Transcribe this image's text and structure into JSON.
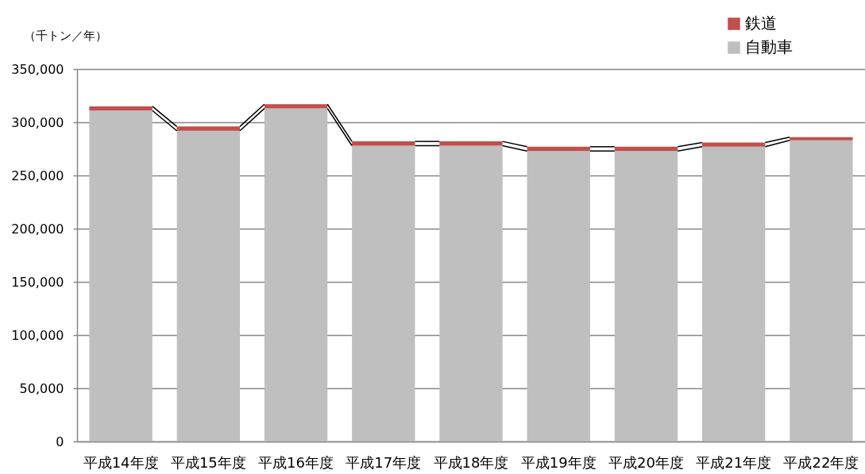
{
  "chart_data": {
    "type": "bar",
    "stacked": true,
    "ylabel": "（千トン／年）",
    "categories": [
      "平成14年度",
      "平成15年度",
      "平成16年度",
      "平成17年度",
      "平成18年度",
      "平成19年度",
      "平成20年度",
      "平成21年度",
      "平成22年度"
    ],
    "series": [
      {
        "name": "自動車",
        "color": "#bfbfbf",
        "values": [
          311000,
          292000,
          313000,
          278000,
          278000,
          273000,
          273000,
          277000,
          283000
        ]
      },
      {
        "name": "鉄道",
        "color": "#c0504d",
        "values": [
          4000,
          4000,
          4000,
          4000,
          4000,
          4000,
          4000,
          4000,
          3000
        ]
      }
    ],
    "ylim": [
      0,
      350000
    ],
    "yticks": [
      0,
      {
        "value": 50000,
        "label": "50,000"
      },
      {
        "value": 100000,
        "label": "100,000"
      },
      {
        "value": 150000,
        "label": "150,000"
      },
      {
        "value": 200000,
        "label": "200,000"
      },
      {
        "value": 250000,
        "label": "250,000"
      },
      {
        "value": 300000,
        "label": "300,000"
      },
      {
        "value": 350000,
        "label": "350,000"
      }
    ],
    "grid": "y",
    "legend": "top right"
  }
}
